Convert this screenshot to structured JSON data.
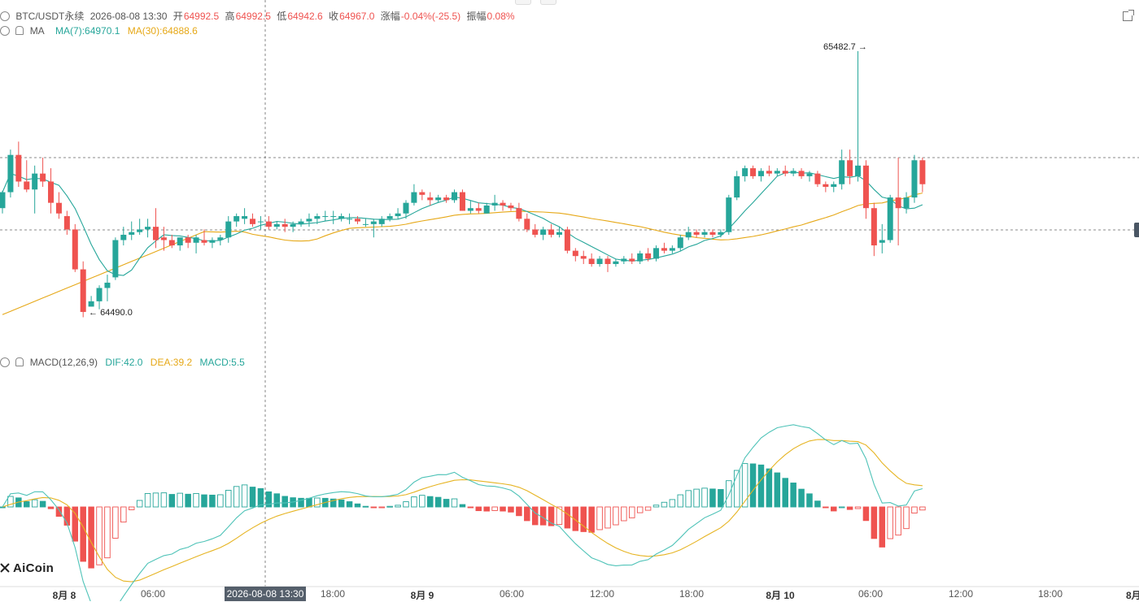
{
  "colors": {
    "up": "#26a69a",
    "down": "#ef5350",
    "ma7": "#26a69a",
    "ma30": "#e6a817",
    "dif": "#4fc3b8",
    "dea": "#e6b422"
  },
  "legend": {
    "symbol": "BTC/USDT永续",
    "datetime": "2026-08-08 13:30",
    "open_label": "开",
    "open": "64992.5",
    "high_label": "高",
    "high": "64992.5",
    "low_label": "低",
    "low": "64942.6",
    "close_label": "收",
    "close": "64967.0",
    "change_label": "涨幅",
    "change": "-0.04%(-25.5)",
    "amp_label": "振幅",
    "amp": "0.08%"
  },
  "ma": {
    "label": "MA",
    "ma7": "MA(7):64970.1",
    "ma30": "MA(30):64888.6"
  },
  "macd": {
    "label": "MACD(12,26,9)",
    "dif": "DIF:42.0",
    "dea": "DEA:39.2",
    "hist": "MACD:5.5"
  },
  "annotations": {
    "high_marker": "65482.7",
    "low_marker": "64490.0"
  },
  "crosshair_time": "2026-08-08 13:30",
  "xaxis": {
    "labels": [
      "8月 8",
      "06:00",
      "18:00",
      "8月 9",
      "06:00",
      "12:00",
      "18:00",
      "8月 10",
      "06:00",
      "12:00",
      "18:00",
      "8月"
    ],
    "bold": [
      true,
      false,
      false,
      true,
      false,
      false,
      false,
      true,
      false,
      false,
      false,
      true
    ]
  },
  "logo": "AiCoin",
  "chart_data": {
    "type": "candlestick",
    "title": "BTC/USDT永续",
    "interval": "30m",
    "candles": [
      [
        64900,
        64965,
        64880,
        64960
      ],
      [
        64960,
        65120,
        64940,
        65100
      ],
      [
        65100,
        65150,
        64980,
        65000
      ],
      [
        65000,
        65080,
        64960,
        64970
      ],
      [
        64970,
        65060,
        64880,
        65030
      ],
      [
        65030,
        65090,
        64980,
        65000
      ],
      [
        65000,
        65050,
        64880,
        64920
      ],
      [
        64920,
        64960,
        64860,
        64880
      ],
      [
        64870,
        64890,
        64800,
        64820
      ],
      [
        64820,
        64840,
        64660,
        64670
      ],
      [
        64670,
        64700,
        64490,
        64510
      ],
      [
        64530,
        64570,
        64530,
        64550
      ],
      [
        64550,
        64610,
        64520,
        64600
      ],
      [
        64600,
        64650,
        64550,
        64620
      ],
      [
        64640,
        64790,
        64630,
        64780
      ],
      [
        64780,
        64830,
        64760,
        64800
      ],
      [
        64800,
        64850,
        64780,
        64810
      ],
      [
        64810,
        64860,
        64800,
        64820
      ],
      [
        64820,
        64860,
        64790,
        64830
      ],
      [
        64830,
        64900,
        64750,
        64780
      ],
      [
        64790,
        64830,
        64740,
        64780
      ],
      [
        64780,
        64800,
        64750,
        64760
      ],
      [
        64760,
        64790,
        64740,
        64790
      ],
      [
        64790,
        64800,
        64750,
        64770
      ],
      [
        64770,
        64800,
        64730,
        64790
      ],
      [
        64780,
        64820,
        64760,
        64770
      ],
      [
        64770,
        64790,
        64750,
        64780
      ],
      [
        64780,
        64800,
        64760,
        64790
      ],
      [
        64790,
        64870,
        64770,
        64850
      ],
      [
        64850,
        64880,
        64830,
        64870
      ],
      [
        64860,
        64900,
        64840,
        64870
      ],
      [
        64860,
        64880,
        64830,
        64840
      ],
      [
        64850,
        64870,
        64820,
        64850
      ],
      [
        64850,
        64870,
        64820,
        64830
      ],
      [
        64830,
        64850,
        64820,
        64840
      ],
      [
        64840,
        64860,
        64810,
        64830
      ],
      [
        64830,
        64850,
        64810,
        64840
      ],
      [
        64840,
        64860,
        64830,
        64850
      ],
      [
        64850,
        64880,
        64830,
        64860
      ],
      [
        64860,
        64880,
        64840,
        64870
      ],
      [
        64870,
        64890,
        64850,
        64870
      ],
      [
        64870,
        64890,
        64840,
        64870
      ],
      [
        64860,
        64880,
        64850,
        64870
      ],
      [
        64860,
        64880,
        64840,
        64860
      ],
      [
        64860,
        64870,
        64840,
        64850
      ],
      [
        64840,
        64860,
        64830,
        64840
      ],
      [
        64840,
        64860,
        64790,
        64850
      ],
      [
        64840,
        64870,
        64830,
        64860
      ],
      [
        64860,
        64880,
        64850,
        64870
      ],
      [
        64870,
        64900,
        64860,
        64880
      ],
      [
        64880,
        64930,
        64860,
        64920
      ],
      [
        64920,
        64990,
        64910,
        64960
      ],
      [
        64960,
        64970,
        64930,
        64950
      ],
      [
        64940,
        64960,
        64910,
        64930
      ],
      [
        64930,
        64950,
        64920,
        64940
      ],
      [
        64940,
        64950,
        64920,
        64930
      ],
      [
        64930,
        64970,
        64920,
        64960
      ],
      [
        64960,
        64970,
        64890,
        64890
      ],
      [
        64890,
        64930,
        64880,
        64900
      ],
      [
        64900,
        64920,
        64880,
        64890
      ],
      [
        64880,
        64920,
        64880,
        64910
      ],
      [
        64910,
        64950,
        64890,
        64920
      ],
      [
        64920,
        64930,
        64890,
        64910
      ],
      [
        64910,
        64920,
        64890,
        64900
      ],
      [
        64900,
        64920,
        64850,
        64860
      ],
      [
        64860,
        64880,
        64810,
        64820
      ],
      [
        64820,
        64840,
        64790,
        64800
      ],
      [
        64800,
        64830,
        64780,
        64820
      ],
      [
        64820,
        64840,
        64790,
        64800
      ],
      [
        64800,
        64830,
        64790,
        64810
      ],
      [
        64820,
        64830,
        64730,
        64740
      ],
      [
        64740,
        64750,
        64700,
        64720
      ],
      [
        64720,
        64740,
        64690,
        64710
      ],
      [
        64710,
        64730,
        64680,
        64690
      ],
      [
        64690,
        64720,
        64680,
        64710
      ],
      [
        64710,
        64720,
        64660,
        64690
      ],
      [
        64690,
        64710,
        64680,
        64700
      ],
      [
        64700,
        64720,
        64690,
        64710
      ],
      [
        64710,
        64730,
        64690,
        64700
      ],
      [
        64700,
        64740,
        64690,
        64730
      ],
      [
        64730,
        64750,
        64700,
        64710
      ],
      [
        64710,
        64760,
        64700,
        64750
      ],
      [
        64750,
        64770,
        64730,
        64740
      ],
      [
        64740,
        64760,
        64730,
        64750
      ],
      [
        64750,
        64800,
        64740,
        64790
      ],
      [
        64790,
        64830,
        64780,
        64810
      ],
      [
        64810,
        64820,
        64790,
        64800
      ],
      [
        64800,
        64820,
        64790,
        64810
      ],
      [
        64810,
        64820,
        64790,
        64800
      ],
      [
        64800,
        64820,
        64790,
        64810
      ],
      [
        64810,
        64950,
        64800,
        64940
      ],
      [
        64940,
        65040,
        64930,
        65020
      ],
      [
        65020,
        65060,
        65000,
        65050
      ],
      [
        65050,
        65060,
        65010,
        65020
      ],
      [
        65020,
        65050,
        65000,
        65040
      ],
      [
        65040,
        65060,
        65020,
        65030
      ],
      [
        65030,
        65050,
        65020,
        65040
      ],
      [
        65040,
        65060,
        65020,
        65030
      ],
      [
        65030,
        65050,
        65020,
        65040
      ],
      [
        65040,
        65050,
        65010,
        65020
      ],
      [
        65020,
        65040,
        65000,
        65030
      ],
      [
        65030,
        65040,
        64980,
        64990
      ],
      [
        64990,
        65000,
        64960,
        64980
      ],
      [
        64980,
        65000,
        64960,
        64990
      ],
      [
        64990,
        65120,
        64970,
        65080
      ],
      [
        65080,
        65120,
        64990,
        65020
      ],
      [
        65020,
        65490,
        65000,
        65060
      ],
      [
        65060,
        65080,
        64860,
        64900
      ],
      [
        64900,
        64920,
        64720,
        64760
      ],
      [
        64770,
        64840,
        64730,
        64780
      ],
      [
        64780,
        64950,
        64770,
        64940
      ],
      [
        64940,
        65090,
        64760,
        64900
      ],
      [
        64900,
        64960,
        64880,
        64940
      ],
      [
        64940,
        65100,
        64920,
        65080
      ],
      [
        65080,
        65090,
        64960,
        64990
      ]
    ],
    "ma7_last": 64970.1,
    "ma30_last": 64888.6,
    "macd_last": {
      "dif": 42.0,
      "dea": 39.2,
      "macd": 5.5
    }
  }
}
